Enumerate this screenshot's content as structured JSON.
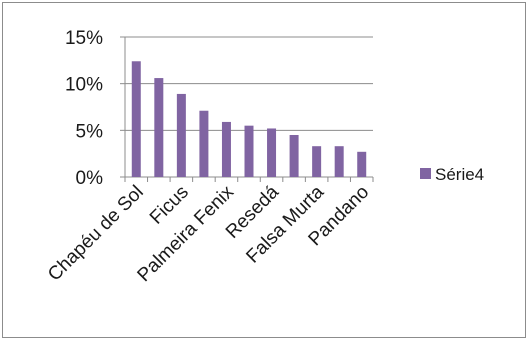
{
  "chart_data": {
    "type": "bar",
    "categories": [
      "Chapéu de Sol",
      "",
      "Ficus",
      "",
      "Palmeira Fenix",
      "",
      "Resedá",
      "",
      "Falsa Murta",
      "",
      "Pandano"
    ],
    "series": [
      {
        "name": "Série4",
        "values": [
          12.4,
          10.6,
          8.9,
          7.1,
          5.9,
          5.5,
          5.2,
          4.5,
          3.3,
          3.3,
          2.7
        ]
      }
    ],
    "ylim": [
      0,
      15
    ],
    "yticks": [
      0,
      5,
      10,
      15
    ],
    "ytick_labels": [
      "0%",
      "5%",
      "10%",
      "15%"
    ],
    "grid": true,
    "legend_position": "right",
    "colors": {
      "bar": "#8064a2",
      "grid": "#8c8c8c",
      "axis": "#8c8c8c"
    }
  }
}
